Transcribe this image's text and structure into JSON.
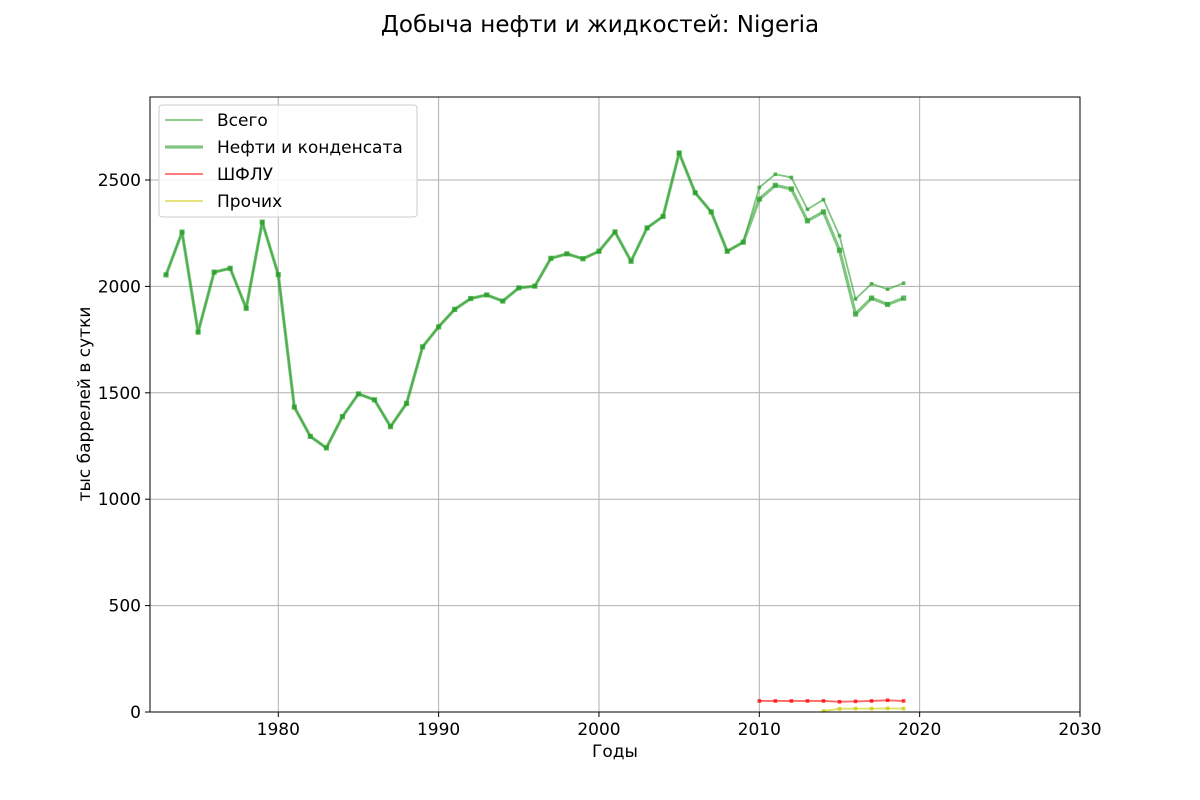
{
  "chart_data": {
    "type": "line",
    "title": "Добыча нефти и жидкостей: Nigeria",
    "xlabel": "Годы",
    "ylabel": "тыс баррелей в сутки",
    "xlim": [
      1972,
      2030
    ],
    "ylim": [
      0,
      2890
    ],
    "xticks": [
      1980,
      1990,
      2000,
      2010,
      2020,
      2030
    ],
    "yticks": [
      0,
      500,
      1000,
      1500,
      2000,
      2500
    ],
    "grid": true,
    "legend_position": "top-left",
    "series": [
      {
        "name": "Всего",
        "color": "#2ca02c",
        "style": "thin",
        "x": [
          1973,
          1974,
          1975,
          1976,
          1977,
          1978,
          1979,
          1980,
          1981,
          1982,
          1983,
          1984,
          1985,
          1986,
          1987,
          1988,
          1989,
          1990,
          1991,
          1992,
          1993,
          1994,
          1995,
          1996,
          1997,
          1998,
          1999,
          2000,
          2001,
          2002,
          2003,
          2004,
          2005,
          2006,
          2007,
          2008,
          2009,
          2010,
          2011,
          2012,
          2013,
          2014,
          2015,
          2016,
          2017,
          2018,
          2019
        ],
        "y": [
          2054,
          2255,
          1785,
          2067,
          2085,
          1897,
          2302,
          2055,
          1433,
          1295,
          1241,
          1388,
          1495,
          1467,
          1341,
          1450,
          1716,
          1810,
          1892,
          1943,
          1960,
          1931,
          1993,
          2001,
          2132,
          2153,
          2130,
          2165,
          2256,
          2118,
          2275,
          2329,
          2627,
          2440,
          2350,
          2165,
          2208,
          2465,
          2527,
          2512,
          2362,
          2408,
          2238,
          1941,
          2012,
          1987,
          2015
        ]
      },
      {
        "name": "Нефти и конденсата",
        "color": "#2ca02c",
        "style": "thick",
        "x": [
          1973,
          1974,
          1975,
          1976,
          1977,
          1978,
          1979,
          1980,
          1981,
          1982,
          1983,
          1984,
          1985,
          1986,
          1987,
          1988,
          1989,
          1990,
          1991,
          1992,
          1993,
          1994,
          1995,
          1996,
          1997,
          1998,
          1999,
          2000,
          2001,
          2002,
          2003,
          2004,
          2005,
          2006,
          2007,
          2008,
          2009,
          2010,
          2011,
          2012,
          2013,
          2014,
          2015,
          2016,
          2017,
          2018,
          2019
        ],
        "y": [
          2054,
          2255,
          1785,
          2067,
          2085,
          1897,
          2302,
          2055,
          1433,
          1295,
          1241,
          1388,
          1495,
          1467,
          1341,
          1450,
          1716,
          1810,
          1892,
          1943,
          1960,
          1931,
          1993,
          2001,
          2132,
          2153,
          2130,
          2165,
          2256,
          2118,
          2275,
          2329,
          2627,
          2440,
          2350,
          2165,
          2208,
          2410,
          2475,
          2458,
          2308,
          2350,
          2170,
          1870,
          1945,
          1915,
          1945
        ]
      },
      {
        "name": "ШФЛУ",
        "color": "#ff0000",
        "style": "thin",
        "x": [
          2010,
          2011,
          2012,
          2013,
          2014,
          2015,
          2016,
          2017,
          2018,
          2019
        ],
        "y": [
          52,
          52,
          52,
          52,
          52,
          48,
          50,
          52,
          55,
          52
        ]
      },
      {
        "name": "Прочих",
        "color": "#cccc00",
        "style": "thin",
        "x": [
          2014,
          2015,
          2016,
          2017,
          2018,
          2019
        ],
        "y": [
          5,
          15,
          16,
          16,
          17,
          16
        ]
      }
    ]
  }
}
